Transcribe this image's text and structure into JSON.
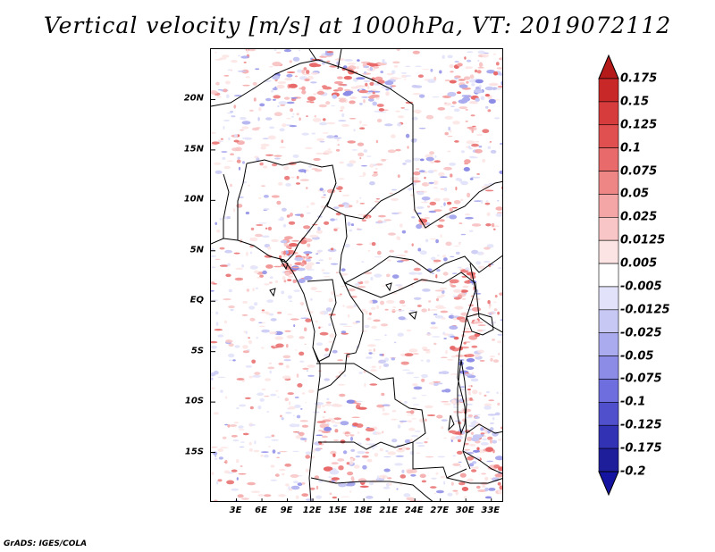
{
  "title": "Vertical velocity [m/s] at 1000hPa, VT: 2019072112",
  "credit": "GrADS: IGES/COLA",
  "map": {
    "lon_range": [
      0,
      34.5
    ],
    "lat_range": [
      -20,
      25
    ],
    "lat_labels": [
      {
        "text": "20N",
        "lat": 20
      },
      {
        "text": "15N",
        "lat": 15
      },
      {
        "text": "10N",
        "lat": 10
      },
      {
        "text": "5N",
        "lat": 5
      },
      {
        "text": "EQ",
        "lat": 0
      },
      {
        "text": "5S",
        "lat": -5
      },
      {
        "text": "10S",
        "lat": -10
      },
      {
        "text": "15S",
        "lat": -15
      }
    ],
    "lon_labels": [
      {
        "text": "3E",
        "lon": 3
      },
      {
        "text": "6E",
        "lon": 6
      },
      {
        "text": "9E",
        "lon": 9
      },
      {
        "text": "12E",
        "lon": 12
      },
      {
        "text": "15E",
        "lon": 15
      },
      {
        "text": "18E",
        "lon": 18
      },
      {
        "text": "21E",
        "lon": 21
      },
      {
        "text": "24E",
        "lon": 24
      },
      {
        "text": "27E",
        "lon": 27
      },
      {
        "text": "30E",
        "lon": 30
      },
      {
        "text": "33E",
        "lon": 33
      }
    ]
  },
  "colorbar": {
    "levels": [
      "0.175",
      "0.15",
      "0.125",
      "0.1",
      "0.075",
      "0.05",
      "0.025",
      "0.0125",
      "0.005",
      "-0.005",
      "-0.0125",
      "-0.025",
      "-0.05",
      "-0.075",
      "-0.1",
      "-0.125",
      "-0.175",
      "-0.2"
    ],
    "colors": [
      "#b41a1a",
      "#c82828",
      "#d63c3c",
      "#e05050",
      "#e86a6a",
      "#ee8686",
      "#f4a6a6",
      "#f8c6c6",
      "#fce4e4",
      "#ffffff",
      "#e2e2fa",
      "#c8c8f4",
      "#aaaaee",
      "#8c8ce6",
      "#6e6ede",
      "#5050cc",
      "#3232b4",
      "#1e1e9a",
      "#1414a0"
    ]
  }
}
